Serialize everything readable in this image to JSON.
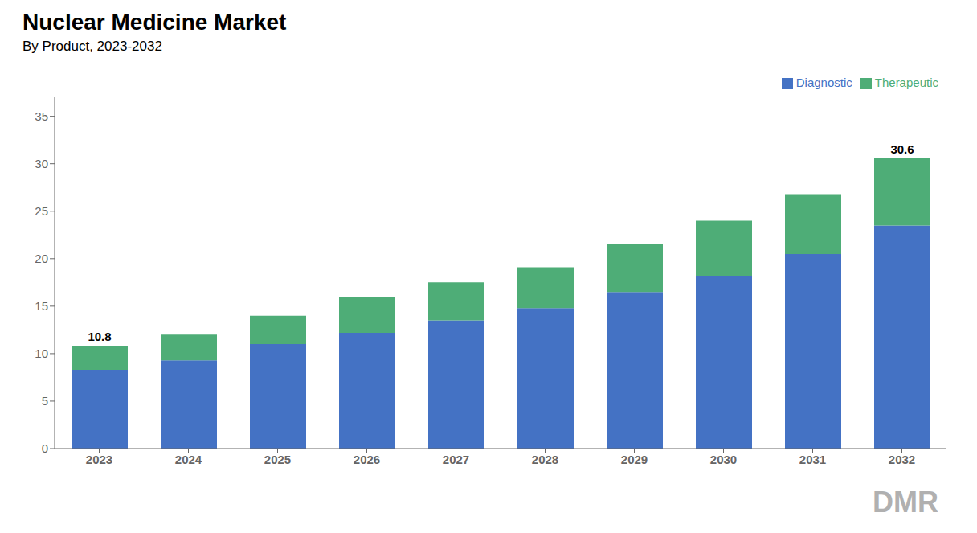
{
  "chart_data": {
    "type": "bar",
    "title": "Nuclear Medicine Market",
    "subtitle": "By Product, 2023-2032",
    "categories": [
      "2023",
      "2024",
      "2025",
      "2026",
      "2027",
      "2028",
      "2029",
      "2030",
      "2031",
      "2032"
    ],
    "series": [
      {
        "name": "Diagnostic",
        "color": "#4472C4",
        "values": [
          8.3,
          9.3,
          11.0,
          12.2,
          13.5,
          14.8,
          16.5,
          18.2,
          20.5,
          23.5
        ]
      },
      {
        "name": "Therapeutic",
        "color": "#4EAD77",
        "values": [
          2.5,
          2.7,
          3.0,
          3.8,
          4.0,
          4.3,
          5.0,
          5.8,
          6.3,
          7.1
        ]
      }
    ],
    "totals": [
      10.8,
      null,
      null,
      null,
      null,
      null,
      null,
      null,
      null,
      30.6
    ],
    "stacked": true,
    "ylim": [
      0,
      37
    ],
    "yticks": [
      0,
      5,
      10,
      15,
      20,
      25,
      30,
      35
    ],
    "grid": false,
    "legend": "top-right",
    "annotations": [
      "DMR"
    ]
  }
}
